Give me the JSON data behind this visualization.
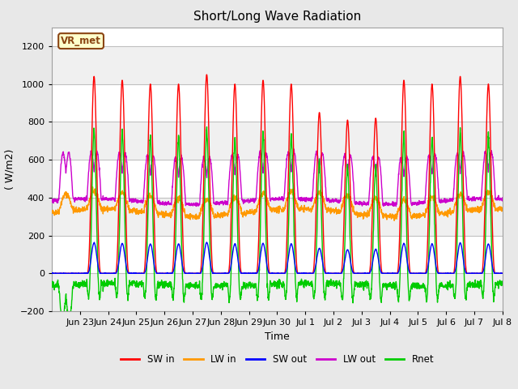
{
  "title": "Short/Long Wave Radiation",
  "xlabel": "Time",
  "ylabel": "( W/m2)",
  "ylim": [
    -200,
    1300
  ],
  "yticks": [
    -200,
    0,
    200,
    400,
    600,
    800,
    1000,
    1200
  ],
  "fig_bg": "#e8e8e8",
  "plot_bg": "#ffffff",
  "legend_entries": [
    "SW in",
    "LW in",
    "SW out",
    "LW out",
    "Rnet"
  ],
  "legend_colors": [
    "#ff0000",
    "#ff9900",
    "#0000ff",
    "#cc00cc",
    "#00cc00"
  ],
  "source_label": "VR_met",
  "band_colors": [
    "#f0f0f0",
    "#ffffff"
  ],
  "n_days": 16
}
